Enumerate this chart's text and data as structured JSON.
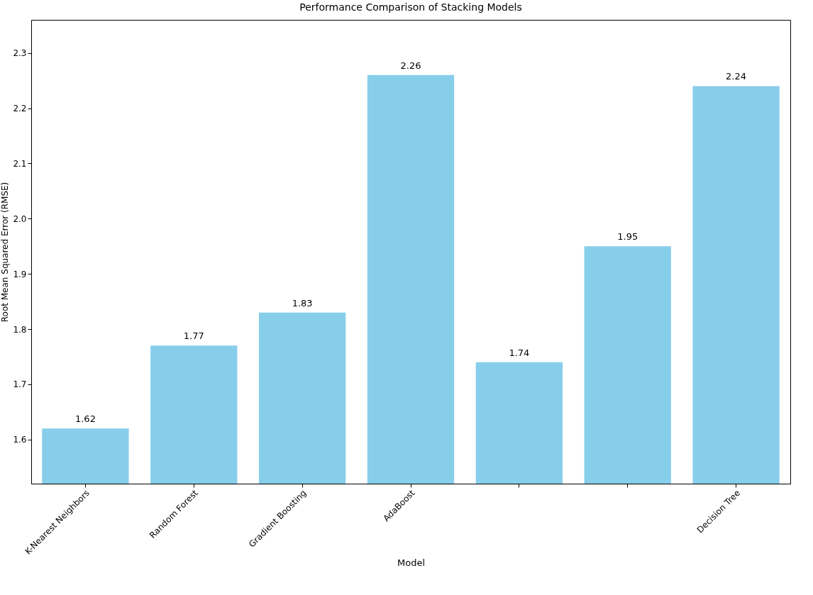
{
  "chart_data": {
    "type": "bar",
    "title": "Performance Comparison of Stacking Models",
    "xlabel": "Model",
    "ylabel": "Root Mean Squared Error (RMSE)",
    "categories": [
      "K-Nearest Neighbors",
      "Random Forest",
      "Gradient Boosting",
      "AdaBoost",
      null,
      null,
      "Decision Tree"
    ],
    "values": [
      1.62,
      1.77,
      1.83,
      2.26,
      1.74,
      1.95,
      2.24
    ],
    "color": "#87ceeb",
    "ylim": [
      1.52,
      2.36
    ],
    "yticks": [
      1.6,
      1.7,
      1.8,
      1.9,
      {
        "value": 2.0,
        "label": "2.0"
      },
      2.1,
      2.2,
      2.3
    ],
    "grid": false,
    "data_labels": true
  }
}
